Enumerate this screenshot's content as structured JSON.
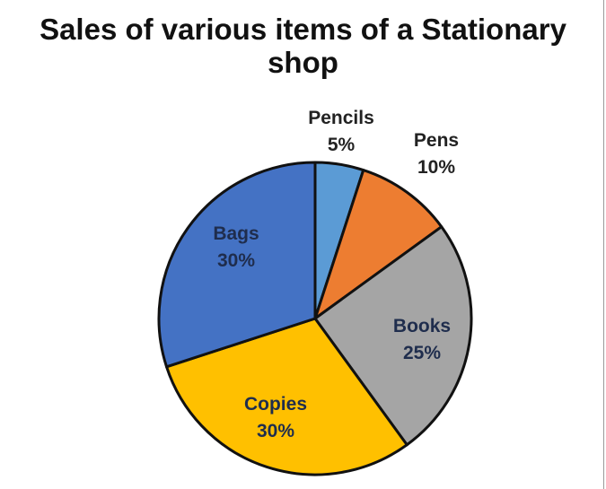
{
  "chart_data": {
    "type": "pie",
    "title": "Sales of various items of a Stationary shop",
    "title_lines": [
      "Sales of various items of a Stationary",
      "shop"
    ],
    "slices": [
      {
        "name": "Pencils",
        "value": 5,
        "label": "5%",
        "color": "#5b9bd5"
      },
      {
        "name": "Pens",
        "value": 10,
        "label": "10%",
        "color": "#ed7d31"
      },
      {
        "name": "Books",
        "value": 25,
        "label": "25%",
        "color": "#a5a5a5"
      },
      {
        "name": "Copies",
        "value": 30,
        "label": "30%",
        "color": "#ffc000"
      },
      {
        "name": "Bags",
        "value": 30,
        "label": "30%",
        "color": "#4472c4"
      }
    ],
    "legend": "none",
    "label_color_inside": "#1f2d4d",
    "label_color_outside": "#222222"
  }
}
